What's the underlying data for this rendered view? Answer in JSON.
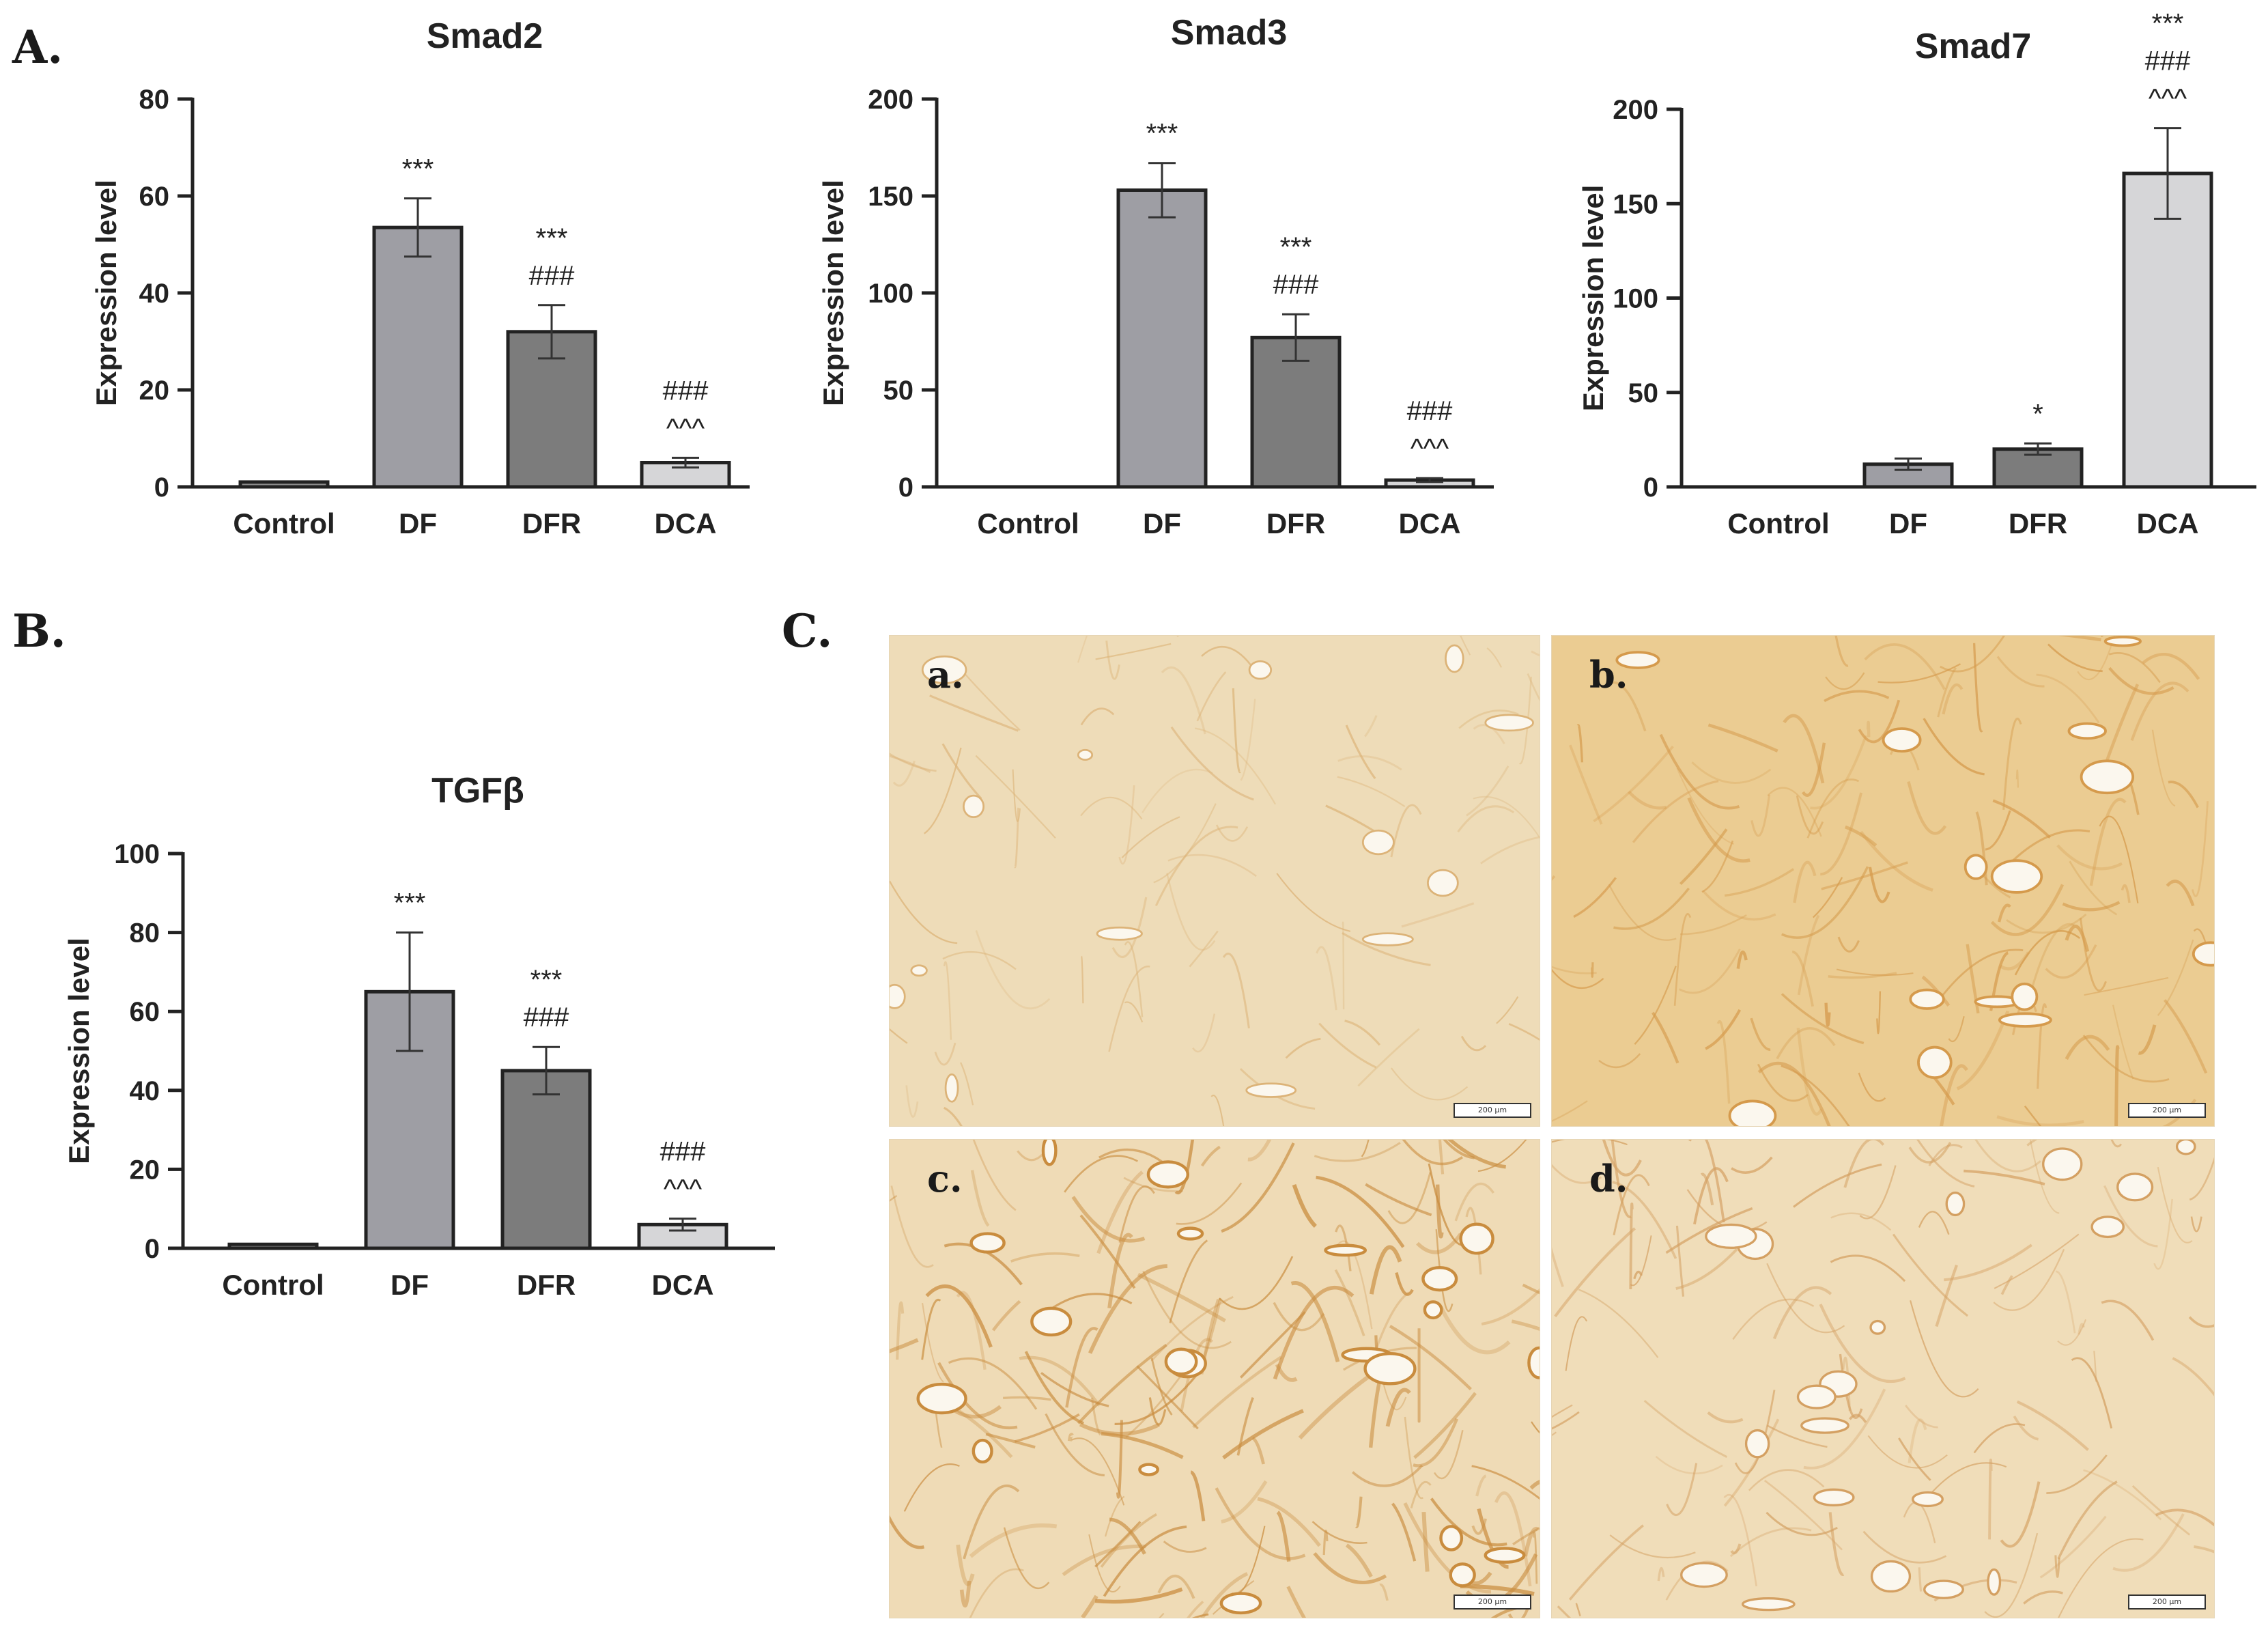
{
  "panel_labels": {
    "a": "A.",
    "b": "B.",
    "c": "C."
  },
  "chart_data": [
    {
      "type": "bar",
      "title": "Smad2",
      "ylabel": "Expression level",
      "categories": [
        "Control",
        "DF",
        "DFR",
        "DCA"
      ],
      "values": [
        1,
        53.5,
        32,
        5
      ],
      "errors": [
        0,
        6,
        5.5,
        1
      ],
      "ylim": [
        0,
        80
      ],
      "yticks": [
        0,
        20,
        40,
        60,
        80
      ],
      "colors": [
        "#8c8c8c",
        "#9e9ea4",
        "#7c7c7c",
        "#d6d6d8"
      ],
      "annotations": [
        [],
        [
          "***"
        ],
        [
          "***",
          "###"
        ],
        [
          "###",
          "^^^"
        ]
      ]
    },
    {
      "type": "bar",
      "title": "Smad3",
      "ylabel": "Expression level",
      "categories": [
        "Control",
        "DF",
        "DFR",
        "DCA"
      ],
      "values": [
        0,
        153,
        77,
        3.5
      ],
      "errors": [
        0,
        14,
        12,
        1
      ],
      "ylim": [
        0,
        200
      ],
      "yticks": [
        0,
        50,
        100,
        150,
        200
      ],
      "colors": [
        "#8c8c8c",
        "#9e9ea4",
        "#7c7c7c",
        "#d6d6d8"
      ],
      "annotations": [
        [],
        [
          "***"
        ],
        [
          "***",
          "###"
        ],
        [
          "###",
          "^^^"
        ]
      ]
    },
    {
      "type": "bar",
      "title": "Smad7",
      "ylabel": "Expression level",
      "categories": [
        "Control",
        "DF",
        "DFR",
        "DCA"
      ],
      "values": [
        0,
        12,
        20,
        166
      ],
      "errors": [
        0,
        3,
        3,
        24
      ],
      "ylim": [
        0,
        200
      ],
      "yticks": [
        0,
        50,
        100,
        150,
        200
      ],
      "colors": [
        "#8c8c8c",
        "#9e9ea4",
        "#7c7c7c",
        "#d6d6d8"
      ],
      "annotations": [
        [],
        [],
        [
          "*"
        ],
        [
          "***",
          "###",
          "^^^"
        ]
      ]
    },
    {
      "type": "bar",
      "title": "TGFβ",
      "ylabel": "Expression level",
      "categories": [
        "Control",
        "DF",
        "DFR",
        "DCA"
      ],
      "values": [
        1,
        65,
        45,
        6
      ],
      "errors": [
        0,
        15,
        6,
        1.5
      ],
      "ylim": [
        0,
        100
      ],
      "yticks": [
        0,
        20,
        40,
        60,
        80,
        100
      ],
      "colors": [
        "#8c8c8c",
        "#9e9ea4",
        "#7c7c7c",
        "#d6d6d8"
      ],
      "annotations": [
        [],
        [
          "***"
        ],
        [
          "***",
          "###"
        ],
        [
          "###",
          "^^^"
        ]
      ]
    }
  ],
  "micrographs": [
    {
      "label": "a.",
      "scale": "200 μm",
      "tone": "#eedcb8",
      "stain": "#dcb378",
      "density": 0.25
    },
    {
      "label": "b.",
      "scale": "200 μm",
      "tone": "#ebcc92",
      "stain": "#d59a4c",
      "density": 0.6
    },
    {
      "label": "c.",
      "scale": "200 μm",
      "tone": "#efdbb6",
      "stain": "#c98c3e",
      "density": 0.8
    },
    {
      "label": "d.",
      "scale": "200 μm",
      "tone": "#f0ddb9",
      "stain": "#d4a062",
      "density": 0.45
    }
  ]
}
